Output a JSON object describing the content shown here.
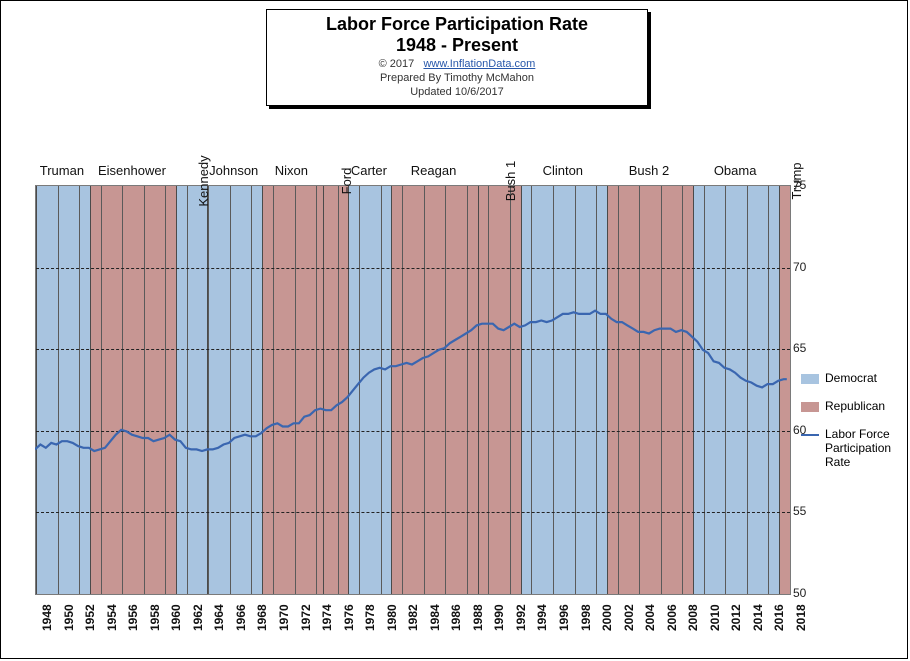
{
  "title": {
    "line1": "Labor Force Participation Rate",
    "line2": "1948 - Present",
    "copyright": "© 2017",
    "link_text": "www.InflationData.com",
    "prepared": "Prepared  By Timothy McMahon",
    "updated": "Updated  10/6/2017",
    "fontsize_main": 18,
    "fontsize_meta": 11
  },
  "colors": {
    "democrat": "#a8c4e0",
    "republican": "#c79693",
    "line": "#3a66b0",
    "grid": "#222222",
    "border": "#7a7a7a",
    "background": "#ffffff",
    "text": "#111111"
  },
  "plot": {
    "x_min": 1948,
    "x_max": 2018,
    "y_min": 50,
    "y_max": 75,
    "y_ticks": [
      50,
      55,
      60,
      65,
      70,
      75
    ],
    "x_tick_step": 2,
    "grid_v_step": 2
  },
  "presidents": [
    {
      "name": "Truman",
      "start": 1948,
      "end": 1953,
      "party": "D",
      "orient": "h"
    },
    {
      "name": "Eisenhower",
      "start": 1953,
      "end": 1961,
      "party": "R",
      "orient": "h"
    },
    {
      "name": "Kennedy",
      "start": 1961,
      "end": 1963.9,
      "party": "D",
      "orient": "v"
    },
    {
      "name": "Johnson",
      "start": 1963.9,
      "end": 1969,
      "party": "D",
      "orient": "h"
    },
    {
      "name": "Nixon",
      "start": 1969,
      "end": 1974.6,
      "party": "R",
      "orient": "h"
    },
    {
      "name": "Ford",
      "start": 1974.6,
      "end": 1977,
      "party": "R",
      "orient": "v"
    },
    {
      "name": "Carter",
      "start": 1977,
      "end": 1981,
      "party": "D",
      "orient": "h"
    },
    {
      "name": "Reagan",
      "start": 1981,
      "end": 1989,
      "party": "R",
      "orient": "h"
    },
    {
      "name": "Bush 1",
      "start": 1989,
      "end": 1993,
      "party": "R",
      "orient": "v"
    },
    {
      "name": "Clinton",
      "start": 1993,
      "end": 2001,
      "party": "D",
      "orient": "h"
    },
    {
      "name": "Bush 2",
      "start": 2001,
      "end": 2009,
      "party": "R",
      "orient": "h"
    },
    {
      "name": "Obama",
      "start": 2009,
      "end": 2017,
      "party": "D",
      "orient": "h"
    },
    {
      "name": "Trump",
      "start": 2017,
      "end": 2018,
      "party": "R",
      "orient": "v"
    }
  ],
  "legend": {
    "items": [
      {
        "label": "Democrat",
        "type": "swatch",
        "color_key": "democrat"
      },
      {
        "label": "Republican",
        "type": "swatch",
        "color_key": "republican"
      },
      {
        "label": "Labor Force Participation Rate",
        "type": "line",
        "color_key": "line"
      }
    ]
  },
  "series": {
    "name": "Labor Force Participation Rate",
    "line_width": 2.2,
    "points": [
      [
        1948,
        58.8
      ],
      [
        1948.5,
        59.1
      ],
      [
        1949,
        58.9
      ],
      [
        1949.5,
        59.2
      ],
      [
        1950,
        59.1
      ],
      [
        1950.5,
        59.3
      ],
      [
        1951,
        59.3
      ],
      [
        1951.5,
        59.2
      ],
      [
        1952,
        59.0
      ],
      [
        1952.5,
        58.9
      ],
      [
        1953,
        58.9
      ],
      [
        1953.5,
        58.7
      ],
      [
        1954,
        58.8
      ],
      [
        1954.5,
        58.9
      ],
      [
        1955,
        59.3
      ],
      [
        1955.5,
        59.7
      ],
      [
        1956,
        60.0
      ],
      [
        1956.5,
        59.9
      ],
      [
        1957,
        59.7
      ],
      [
        1957.5,
        59.6
      ],
      [
        1958,
        59.5
      ],
      [
        1958.5,
        59.5
      ],
      [
        1959,
        59.3
      ],
      [
        1959.5,
        59.4
      ],
      [
        1960,
        59.5
      ],
      [
        1960.5,
        59.7
      ],
      [
        1961,
        59.4
      ],
      [
        1961.5,
        59.3
      ],
      [
        1962,
        58.9
      ],
      [
        1962.5,
        58.8
      ],
      [
        1963,
        58.8
      ],
      [
        1963.5,
        58.7
      ],
      [
        1964,
        58.8
      ],
      [
        1964.5,
        58.8
      ],
      [
        1965,
        58.9
      ],
      [
        1965.5,
        59.1
      ],
      [
        1966,
        59.2
      ],
      [
        1966.5,
        59.5
      ],
      [
        1967,
        59.6
      ],
      [
        1967.5,
        59.7
      ],
      [
        1968,
        59.6
      ],
      [
        1968.5,
        59.6
      ],
      [
        1969,
        59.8
      ],
      [
        1969.5,
        60.1
      ],
      [
        1970,
        60.3
      ],
      [
        1970.5,
        60.4
      ],
      [
        1971,
        60.2
      ],
      [
        1971.5,
        60.2
      ],
      [
        1972,
        60.4
      ],
      [
        1972.5,
        60.4
      ],
      [
        1973,
        60.8
      ],
      [
        1973.5,
        60.9
      ],
      [
        1974,
        61.2
      ],
      [
        1974.5,
        61.3
      ],
      [
        1975,
        61.2
      ],
      [
        1975.5,
        61.2
      ],
      [
        1976,
        61.5
      ],
      [
        1976.5,
        61.7
      ],
      [
        1977,
        62.0
      ],
      [
        1977.5,
        62.4
      ],
      [
        1978,
        62.8
      ],
      [
        1978.5,
        63.2
      ],
      [
        1979,
        63.5
      ],
      [
        1979.5,
        63.7
      ],
      [
        1980,
        63.8
      ],
      [
        1980.5,
        63.7
      ],
      [
        1981,
        63.9
      ],
      [
        1981.5,
        63.9
      ],
      [
        1982,
        64.0
      ],
      [
        1982.5,
        64.1
      ],
      [
        1983,
        64.0
      ],
      [
        1983.5,
        64.2
      ],
      [
        1984,
        64.4
      ],
      [
        1984.5,
        64.5
      ],
      [
        1985,
        64.7
      ],
      [
        1985.5,
        64.9
      ],
      [
        1986,
        65.0
      ],
      [
        1986.5,
        65.3
      ],
      [
        1987,
        65.5
      ],
      [
        1987.5,
        65.7
      ],
      [
        1988,
        65.9
      ],
      [
        1988.5,
        66.1
      ],
      [
        1989,
        66.4
      ],
      [
        1989.5,
        66.5
      ],
      [
        1990,
        66.5
      ],
      [
        1990.5,
        66.5
      ],
      [
        1991,
        66.2
      ],
      [
        1991.5,
        66.1
      ],
      [
        1992,
        66.3
      ],
      [
        1992.5,
        66.5
      ],
      [
        1993,
        66.3
      ],
      [
        1993.5,
        66.4
      ],
      [
        1994,
        66.6
      ],
      [
        1994.5,
        66.6
      ],
      [
        1995,
        66.7
      ],
      [
        1995.5,
        66.6
      ],
      [
        1996,
        66.7
      ],
      [
        1996.5,
        66.9
      ],
      [
        1997,
        67.1
      ],
      [
        1997.5,
        67.1
      ],
      [
        1998,
        67.2
      ],
      [
        1998.5,
        67.1
      ],
      [
        1999,
        67.1
      ],
      [
        1999.5,
        67.1
      ],
      [
        2000,
        67.3
      ],
      [
        2000.5,
        67.1
      ],
      [
        2001,
        67.1
      ],
      [
        2001.5,
        66.8
      ],
      [
        2002,
        66.6
      ],
      [
        2002.5,
        66.6
      ],
      [
        2003,
        66.4
      ],
      [
        2003.5,
        66.2
      ],
      [
        2004,
        66.0
      ],
      [
        2004.5,
        66.0
      ],
      [
        2005,
        65.9
      ],
      [
        2005.5,
        66.1
      ],
      [
        2006,
        66.2
      ],
      [
        2006.5,
        66.2
      ],
      [
        2007,
        66.2
      ],
      [
        2007.5,
        66.0
      ],
      [
        2008,
        66.1
      ],
      [
        2008.5,
        66.0
      ],
      [
        2009,
        65.7
      ],
      [
        2009.5,
        65.4
      ],
      [
        2010,
        64.9
      ],
      [
        2010.5,
        64.7
      ],
      [
        2011,
        64.2
      ],
      [
        2011.5,
        64.1
      ],
      [
        2012,
        63.8
      ],
      [
        2012.5,
        63.7
      ],
      [
        2013,
        63.5
      ],
      [
        2013.5,
        63.2
      ],
      [
        2014,
        63.0
      ],
      [
        2014.5,
        62.9
      ],
      [
        2015,
        62.7
      ],
      [
        2015.5,
        62.6
      ],
      [
        2016,
        62.8
      ],
      [
        2016.5,
        62.8
      ],
      [
        2017,
        63.0
      ],
      [
        2017.5,
        63.1
      ],
      [
        2017.8,
        63.1
      ]
    ]
  }
}
